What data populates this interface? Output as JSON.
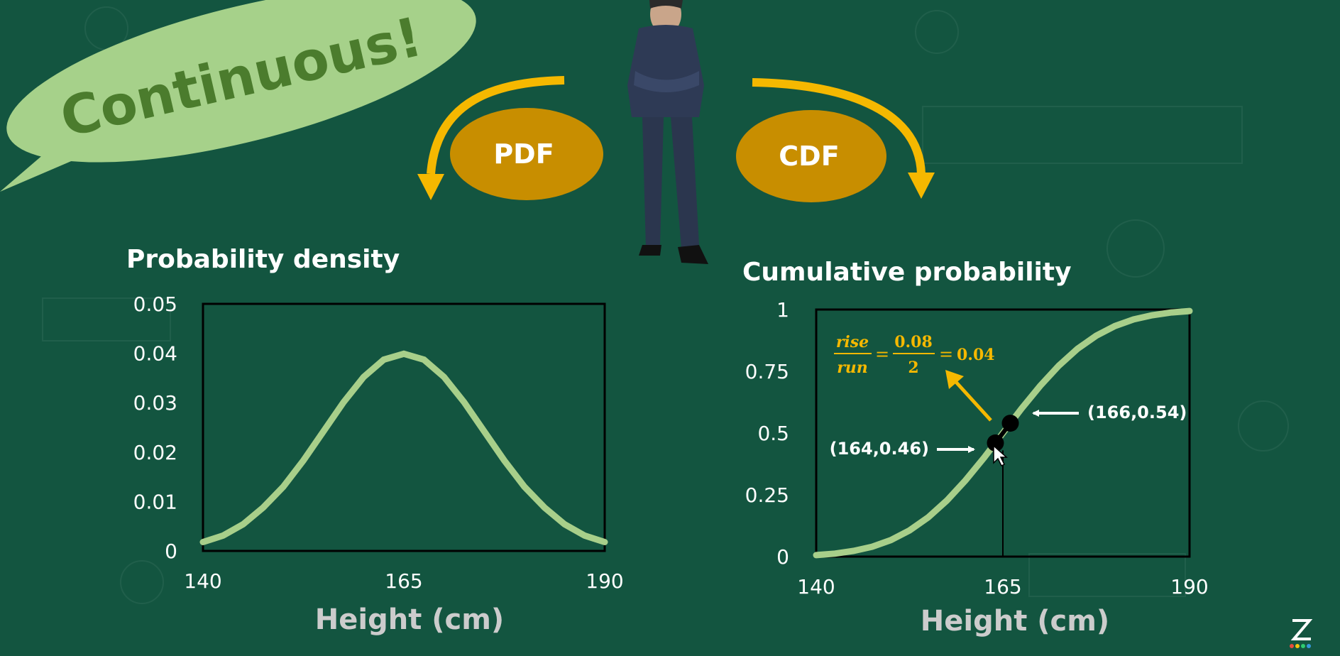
{
  "banner": {
    "text": "Continuous!"
  },
  "pdf_button": {
    "label": "PDF"
  },
  "cdf_button": {
    "label": "CDF"
  },
  "colors": {
    "background": "#135540",
    "curve": "#a8cf8a",
    "arrow": "#f5b800",
    "button": "#c88e00",
    "bubble": "#a6d18a",
    "bubble_text": "#4b7c2d",
    "formula": "#f5b800"
  },
  "chart_data": [
    {
      "type": "line",
      "title": "Probability density",
      "xlabel": "Height (cm)",
      "ylabel": "",
      "xlim": [
        140,
        190
      ],
      "ylim": [
        0,
        0.05
      ],
      "x_ticks": [
        "140",
        "165",
        "190"
      ],
      "y_ticks": [
        "0",
        "0.01",
        "0.02",
        "0.03",
        "0.04",
        "0.05"
      ],
      "grid": false,
      "series": [
        {
          "x": [
            140,
            142.5,
            145,
            147.5,
            150,
            152.5,
            155,
            157.5,
            160,
            162.5,
            165,
            167.5,
            170,
            172.5,
            175,
            177.5,
            180,
            182.5,
            185,
            187.5,
            190
          ],
          "y": [
            0.0018,
            0.0031,
            0.0054,
            0.0088,
            0.013,
            0.0183,
            0.0242,
            0.0301,
            0.0352,
            0.0387,
            0.0399,
            0.0387,
            0.0352,
            0.0301,
            0.0242,
            0.0183,
            0.013,
            0.0088,
            0.0054,
            0.0031,
            0.0018
          ]
        }
      ]
    },
    {
      "type": "line",
      "title": "Cumulative probability",
      "xlabel": "Height (cm)",
      "ylabel": "",
      "xlim": [
        140,
        190
      ],
      "ylim": [
        0,
        1
      ],
      "x_ticks": [
        "140",
        "165",
        "190"
      ],
      "y_ticks": [
        "0",
        "0.25",
        "0.5",
        "0.75",
        "1"
      ],
      "grid": false,
      "series": [
        {
          "x": [
            140,
            142.5,
            145,
            147.5,
            150,
            152.5,
            155,
            157.5,
            160,
            162.5,
            165,
            167.5,
            170,
            172.5,
            175,
            177.5,
            180,
            182.5,
            185,
            187.5,
            190
          ],
          "y": [
            0.006,
            0.012,
            0.023,
            0.04,
            0.067,
            0.106,
            0.159,
            0.227,
            0.309,
            0.401,
            0.5,
            0.599,
            0.691,
            0.773,
            0.841,
            0.894,
            0.933,
            0.96,
            0.977,
            0.988,
            0.994
          ]
        }
      ],
      "vertical_line_x": 165,
      "points": [
        {
          "x": 164,
          "y": 0.46,
          "label": "(164,0.46)"
        },
        {
          "x": 166,
          "y": 0.54,
          "label": "(166,0.54)"
        }
      ],
      "annotation": {
        "rise": "rise",
        "run": "run",
        "equals1": "=",
        "num": "0.08",
        "den": "2",
        "equals2": "=",
        "result": "0.04"
      }
    }
  ]
}
